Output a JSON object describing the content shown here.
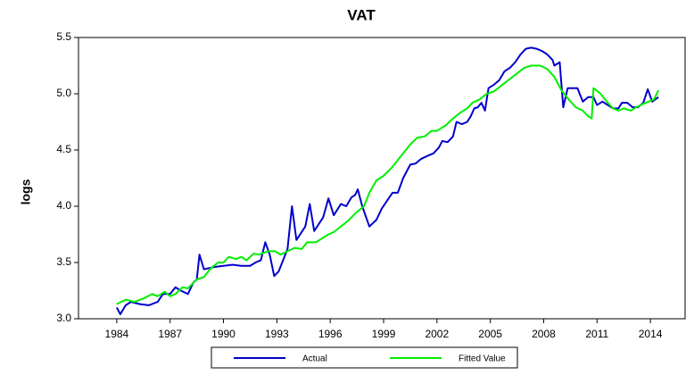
{
  "chart_data": {
    "type": "line",
    "title": "VAT",
    "y_label": "logs",
    "xlim": [
      1981.85,
      2015.95
    ],
    "xticks": [
      1984,
      1987,
      1990,
      1993,
      1996,
      1999,
      2002,
      2005,
      2008,
      2011,
      2014
    ],
    "ylim": [
      3.0,
      5.5
    ],
    "yticks": [
      {
        "value": 3.0,
        "label": "3.0"
      },
      3.5,
      {
        "value": 4.0,
        "label": "4.0"
      },
      4.5,
      {
        "value": 5.0,
        "label": "5.0"
      },
      5.5
    ],
    "series": [
      {
        "name": "Actual",
        "color": "#0000cc",
        "x": [
          1984.0,
          1984.2,
          1984.5,
          1984.8,
          1985.3,
          1985.8,
          1986.3,
          1986.6,
          1987.0,
          1987.3,
          1987.6,
          1988.0,
          1988.3,
          1988.5,
          1988.65,
          1988.9,
          1989.5,
          1990.0,
          1990.5,
          1991.0,
          1991.5,
          1991.8,
          1992.1,
          1992.35,
          1992.6,
          1992.85,
          1993.1,
          1993.6,
          1993.85,
          1994.1,
          1994.6,
          1994.85,
          1995.1,
          1995.6,
          1995.9,
          1996.2,
          1996.6,
          1996.9,
          1997.2,
          1997.4,
          1997.55,
          1997.8,
          1998.2,
          1998.6,
          1998.9,
          1999.2,
          1999.5,
          1999.8,
          2000.1,
          2000.5,
          2000.8,
          2001.1,
          2001.5,
          2001.8,
          2002.1,
          2002.3,
          2002.6,
          2002.9,
          2003.1,
          2003.4,
          2003.7,
          2003.9,
          2004.1,
          2004.3,
          2004.5,
          2004.7,
          2004.9,
          2005.2,
          2005.5,
          2005.8,
          2006.1,
          2006.4,
          2006.7,
          2007.0,
          2007.3,
          2007.6,
          2007.9,
          2008.2,
          2008.5,
          2008.6,
          2008.9,
          2009.1,
          2009.35,
          2009.9,
          2010.2,
          2010.5,
          2010.8,
          2011.0,
          2011.3,
          2011.6,
          2011.9,
          2012.2,
          2012.4,
          2012.7,
          2013.0,
          2013.3,
          2013.6,
          2013.85,
          2014.1,
          2014.45
        ],
        "values": [
          3.1,
          3.04,
          3.12,
          3.15,
          3.13,
          3.12,
          3.15,
          3.22,
          3.22,
          3.28,
          3.25,
          3.22,
          3.32,
          3.35,
          3.57,
          3.44,
          3.46,
          3.47,
          3.48,
          3.47,
          3.47,
          3.5,
          3.52,
          3.68,
          3.57,
          3.38,
          3.42,
          3.62,
          4.0,
          3.7,
          3.82,
          4.02,
          3.78,
          3.9,
          4.07,
          3.92,
          4.02,
          4.0,
          4.08,
          4.1,
          4.15,
          4.0,
          3.82,
          3.88,
          3.98,
          4.05,
          4.12,
          4.12,
          4.25,
          4.37,
          4.38,
          4.42,
          4.45,
          4.47,
          4.52,
          4.58,
          4.57,
          4.62,
          4.75,
          4.73,
          4.75,
          4.8,
          4.87,
          4.88,
          4.92,
          4.85,
          5.05,
          5.08,
          5.12,
          5.2,
          5.23,
          5.28,
          5.35,
          5.4,
          5.41,
          5.4,
          5.38,
          5.35,
          5.3,
          5.25,
          5.28,
          4.88,
          5.05,
          5.05,
          4.93,
          4.97,
          4.97,
          4.9,
          4.93,
          4.9,
          4.87,
          4.87,
          4.92,
          4.92,
          4.88,
          4.88,
          4.92,
          5.04,
          4.93,
          4.97
        ]
      },
      {
        "name": "Fitted Value",
        "color": "#00ee00",
        "x": [
          1984.0,
          1984.5,
          1985.0,
          1985.5,
          1986.0,
          1986.3,
          1986.7,
          1987.0,
          1987.3,
          1987.7,
          1988.0,
          1988.5,
          1988.9,
          1989.3,
          1989.7,
          1990.0,
          1990.3,
          1990.7,
          1991.0,
          1991.3,
          1991.7,
          1992.0,
          1992.5,
          1992.9,
          1993.2,
          1993.6,
          1994.0,
          1994.4,
          1994.7,
          1995.2,
          1995.6,
          1995.9,
          1996.2,
          1996.6,
          1997.0,
          1997.5,
          1997.9,
          1998.2,
          1998.6,
          1999.0,
          1999.5,
          2000.0,
          2000.5,
          2000.9,
          2001.3,
          2001.7,
          2002.0,
          2002.5,
          2002.9,
          2003.3,
          2003.7,
          2004.0,
          2004.4,
          2004.8,
          2005.2,
          2005.6,
          2006.0,
          2006.5,
          2006.9,
          2007.3,
          2007.8,
          2008.2,
          2008.6,
          2009.0,
          2009.4,
          2009.8,
          2010.2,
          2010.5,
          2010.7,
          2010.8,
          2011.2,
          2011.6,
          2011.9,
          2012.2,
          2012.5,
          2012.9,
          2013.2,
          2013.6,
          2013.9,
          2014.2,
          2014.45
        ],
        "values": [
          3.13,
          3.17,
          3.15,
          3.18,
          3.22,
          3.2,
          3.24,
          3.2,
          3.22,
          3.28,
          3.27,
          3.35,
          3.37,
          3.45,
          3.5,
          3.5,
          3.55,
          3.53,
          3.55,
          3.52,
          3.58,
          3.57,
          3.6,
          3.6,
          3.57,
          3.6,
          3.63,
          3.62,
          3.68,
          3.68,
          3.72,
          3.75,
          3.77,
          3.82,
          3.87,
          3.95,
          4.0,
          4.12,
          4.23,
          4.27,
          4.35,
          4.45,
          4.55,
          4.61,
          4.62,
          4.67,
          4.67,
          4.72,
          4.78,
          4.83,
          4.87,
          4.92,
          4.95,
          5.0,
          5.02,
          5.07,
          5.12,
          5.18,
          5.23,
          5.25,
          5.25,
          5.22,
          5.15,
          5.03,
          4.95,
          4.88,
          4.85,
          4.8,
          4.78,
          5.05,
          5.0,
          4.92,
          4.87,
          4.85,
          4.87,
          4.85,
          4.88,
          4.91,
          4.93,
          4.95,
          5.03
        ]
      }
    ]
  }
}
